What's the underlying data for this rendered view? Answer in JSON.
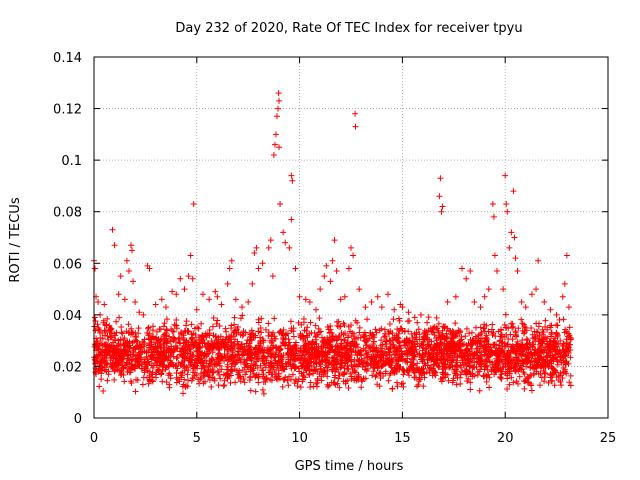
{
  "chart_data": {
    "type": "scatter",
    "title": "Day 232 of 2020, Rate Of TEC Index for receiver tpyu",
    "xlabel": "GPS time / hours",
    "ylabel": "ROTI / TECUs",
    "xlim": [
      0,
      25
    ],
    "ylim": [
      0,
      0.14
    ],
    "xticks": [
      0,
      5,
      10,
      15,
      20,
      25
    ],
    "yticks": [
      0,
      0.02,
      0.04,
      0.06,
      0.08,
      0.1,
      0.12,
      0.14
    ],
    "xtick_labels": [
      "0",
      "5",
      "10",
      "15",
      "20",
      "25"
    ],
    "ytick_labels": [
      "0",
      "0.02",
      "0.04",
      "0.06",
      "0.08",
      "0.1",
      "0.12",
      "0.14"
    ],
    "grid": true,
    "marker": "+",
    "color": "#ff0000",
    "background_band": {
      "description": "dense cluster of points roughly between 0.01 and 0.04 TECU across 0 to 23.2 hours",
      "x_range": [
        0,
        23.2
      ],
      "y_range": [
        0.008,
        0.04
      ]
    },
    "points": [
      [
        0.0,
        0.061
      ],
      [
        0.05,
        0.058
      ],
      [
        0.1,
        0.047
      ],
      [
        0.2,
        0.045
      ],
      [
        0.3,
        0.04
      ],
      [
        0.5,
        0.044
      ],
      [
        0.9,
        0.073
      ],
      [
        1.0,
        0.067
      ],
      [
        1.2,
        0.048
      ],
      [
        1.3,
        0.055
      ],
      [
        1.5,
        0.046
      ],
      [
        1.6,
        0.061
      ],
      [
        1.7,
        0.057
      ],
      [
        1.8,
        0.067
      ],
      [
        1.85,
        0.065
      ],
      [
        1.9,
        0.053
      ],
      [
        2.0,
        0.045
      ],
      [
        2.2,
        0.041
      ],
      [
        2.4,
        0.04
      ],
      [
        2.6,
        0.059
      ],
      [
        2.7,
        0.058
      ],
      [
        3.0,
        0.044
      ],
      [
        3.3,
        0.046
      ],
      [
        3.5,
        0.043
      ],
      [
        3.8,
        0.049
      ],
      [
        4.0,
        0.048
      ],
      [
        4.2,
        0.054
      ],
      [
        4.4,
        0.05
      ],
      [
        4.6,
        0.055
      ],
      [
        4.7,
        0.063
      ],
      [
        4.8,
        0.054
      ],
      [
        4.85,
        0.083
      ],
      [
        5.0,
        0.042
      ],
      [
        5.3,
        0.048
      ],
      [
        5.6,
        0.046
      ],
      [
        5.9,
        0.049
      ],
      [
        6.0,
        0.047
      ],
      [
        6.2,
        0.044
      ],
      [
        6.5,
        0.052
      ],
      [
        6.6,
        0.058
      ],
      [
        6.7,
        0.061
      ],
      [
        6.9,
        0.046
      ],
      [
        7.2,
        0.043
      ],
      [
        7.5,
        0.045
      ],
      [
        7.7,
        0.052
      ],
      [
        7.8,
        0.064
      ],
      [
        7.9,
        0.066
      ],
      [
        8.0,
        0.058
      ],
      [
        8.2,
        0.06
      ],
      [
        8.5,
        0.066
      ],
      [
        8.6,
        0.069
      ],
      [
        8.7,
        0.055
      ],
      [
        8.75,
        0.102
      ],
      [
        8.8,
        0.106
      ],
      [
        8.85,
        0.11
      ],
      [
        8.9,
        0.117
      ],
      [
        8.95,
        0.12
      ],
      [
        9.0,
        0.123
      ],
      [
        8.98,
        0.126
      ],
      [
        9.0,
        0.105
      ],
      [
        9.05,
        0.083
      ],
      [
        9.2,
        0.072
      ],
      [
        9.3,
        0.068
      ],
      [
        9.5,
        0.066
      ],
      [
        9.6,
        0.094
      ],
      [
        9.65,
        0.092
      ],
      [
        9.6,
        0.077
      ],
      [
        9.8,
        0.058
      ],
      [
        10.0,
        0.047
      ],
      [
        10.3,
        0.046
      ],
      [
        10.5,
        0.045
      ],
      [
        10.8,
        0.042
      ],
      [
        11.0,
        0.05
      ],
      [
        11.2,
        0.055
      ],
      [
        11.3,
        0.059
      ],
      [
        11.5,
        0.053
      ],
      [
        11.6,
        0.061
      ],
      [
        11.7,
        0.069
      ],
      [
        11.8,
        0.057
      ],
      [
        12.0,
        0.046
      ],
      [
        12.2,
        0.047
      ],
      [
        12.4,
        0.058
      ],
      [
        12.5,
        0.066
      ],
      [
        12.6,
        0.063
      ],
      [
        12.7,
        0.118
      ],
      [
        12.72,
        0.113
      ],
      [
        12.9,
        0.05
      ],
      [
        13.2,
        0.043
      ],
      [
        13.5,
        0.045
      ],
      [
        13.8,
        0.047
      ],
      [
        14.0,
        0.043
      ],
      [
        14.3,
        0.048
      ],
      [
        14.6,
        0.042
      ],
      [
        14.9,
        0.044
      ],
      [
        15.0,
        0.043
      ],
      [
        15.3,
        0.041
      ],
      [
        15.6,
        0.039
      ],
      [
        15.9,
        0.04
      ],
      [
        16.2,
        0.037
      ],
      [
        16.5,
        0.035
      ],
      [
        16.8,
        0.086
      ],
      [
        16.85,
        0.093
      ],
      [
        16.9,
        0.08
      ],
      [
        16.95,
        0.082
      ],
      [
        17.2,
        0.045
      ],
      [
        17.6,
        0.047
      ],
      [
        17.9,
        0.058
      ],
      [
        18.1,
        0.054
      ],
      [
        18.3,
        0.057
      ],
      [
        18.5,
        0.045
      ],
      [
        18.8,
        0.043
      ],
      [
        19.0,
        0.047
      ],
      [
        19.2,
        0.05
      ],
      [
        19.4,
        0.083
      ],
      [
        19.45,
        0.078
      ],
      [
        19.5,
        0.063
      ],
      [
        19.6,
        0.057
      ],
      [
        19.9,
        0.05
      ],
      [
        20.0,
        0.094
      ],
      [
        20.05,
        0.083
      ],
      [
        20.1,
        0.08
      ],
      [
        20.2,
        0.066
      ],
      [
        20.3,
        0.072
      ],
      [
        20.4,
        0.088
      ],
      [
        20.45,
        0.07
      ],
      [
        20.5,
        0.062
      ],
      [
        20.6,
        0.057
      ],
      [
        20.8,
        0.045
      ],
      [
        21.0,
        0.043
      ],
      [
        21.3,
        0.048
      ],
      [
        21.5,
        0.05
      ],
      [
        21.6,
        0.061
      ],
      [
        21.9,
        0.045
      ],
      [
        22.2,
        0.042
      ],
      [
        22.5,
        0.04
      ],
      [
        22.8,
        0.047
      ],
      [
        22.9,
        0.052
      ],
      [
        23.0,
        0.063
      ],
      [
        23.1,
        0.043
      ]
    ]
  }
}
